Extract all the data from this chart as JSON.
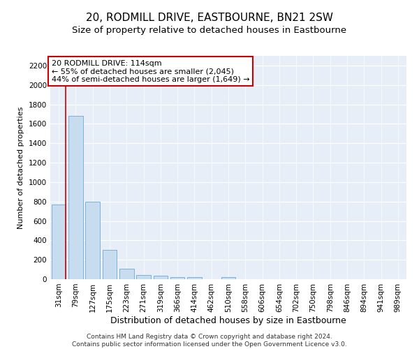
{
  "title": "20, RODMILL DRIVE, EASTBOURNE, BN21 2SW",
  "subtitle": "Size of property relative to detached houses in Eastbourne",
  "xlabel": "Distribution of detached houses by size in Eastbourne",
  "ylabel": "Number of detached properties",
  "bar_color": "#c8dcf0",
  "bar_edge_color": "#6aaad4",
  "background_color": "#e8eef8",
  "grid_color": "#ffffff",
  "categories": [
    "31sqm",
    "79sqm",
    "127sqm",
    "175sqm",
    "223sqm",
    "271sqm",
    "319sqm",
    "366sqm",
    "414sqm",
    "462sqm",
    "510sqm",
    "558sqm",
    "606sqm",
    "654sqm",
    "702sqm",
    "750sqm",
    "798sqm",
    "846sqm",
    "894sqm",
    "941sqm",
    "989sqm"
  ],
  "values": [
    770,
    1680,
    795,
    300,
    110,
    45,
    35,
    25,
    20,
    0,
    20,
    0,
    0,
    0,
    0,
    0,
    0,
    0,
    0,
    0,
    0
  ],
  "ylim": [
    0,
    2300
  ],
  "yticks": [
    0,
    200,
    400,
    600,
    800,
    1000,
    1200,
    1400,
    1600,
    1800,
    2000,
    2200
  ],
  "vline_color": "#cc0000",
  "annotation_text": "20 RODMILL DRIVE: 114sqm\n← 55% of detached houses are smaller (2,045)\n44% of semi-detached houses are larger (1,649) →",
  "annotation_box_color": "#ffffff",
  "annotation_box_edge": "#cc0000",
  "footer_text": "Contains HM Land Registry data © Crown copyright and database right 2024.\nContains public sector information licensed under the Open Government Licence v3.0.",
  "title_fontsize": 11,
  "subtitle_fontsize": 9.5,
  "xlabel_fontsize": 9,
  "ylabel_fontsize": 8,
  "tick_fontsize": 7.5,
  "annotation_fontsize": 8,
  "footer_fontsize": 6.5
}
